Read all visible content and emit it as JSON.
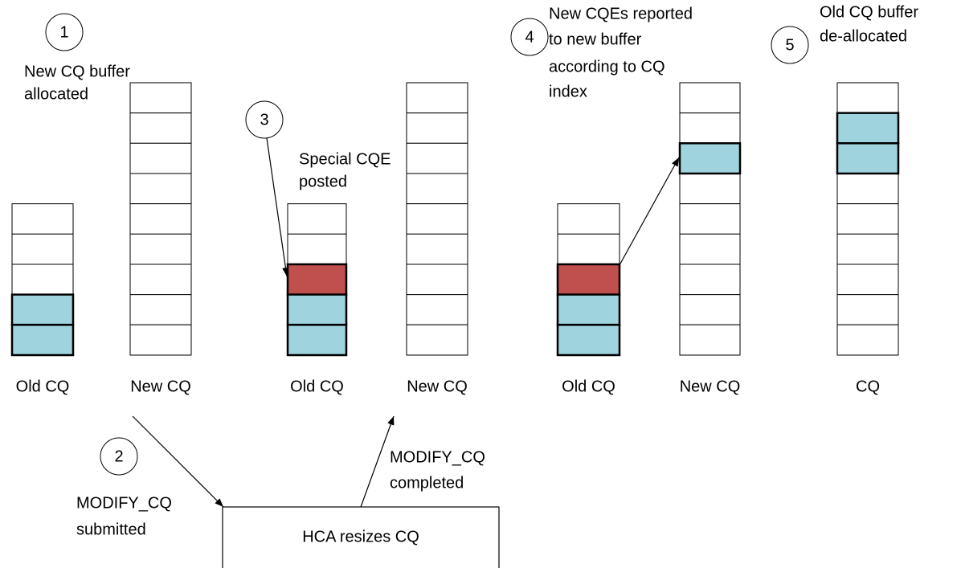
{
  "steps": [
    {
      "number": "1",
      "lines": [
        "New CQ buffer",
        "allocated"
      ]
    },
    {
      "number": "2",
      "lines": [
        "MODIFY_CQ",
        "submitted"
      ]
    },
    {
      "number": "3",
      "lines": [
        "Special CQE",
        "posted"
      ]
    },
    {
      "number": "4",
      "lines": [
        "New CQEs reported",
        "to new buffer",
        "according to CQ",
        "index"
      ]
    },
    {
      "number": "5",
      "lines": [
        "Old CQ buffer",
        "de-allocated"
      ]
    }
  ],
  "stacks": [
    "Old CQ",
    "New CQ",
    "Old CQ",
    "New CQ",
    "Old CQ",
    "New CQ",
    "CQ"
  ],
  "completed": [
    "MODIFY_CQ",
    "completed"
  ],
  "box": "HCA resizes CQ"
}
